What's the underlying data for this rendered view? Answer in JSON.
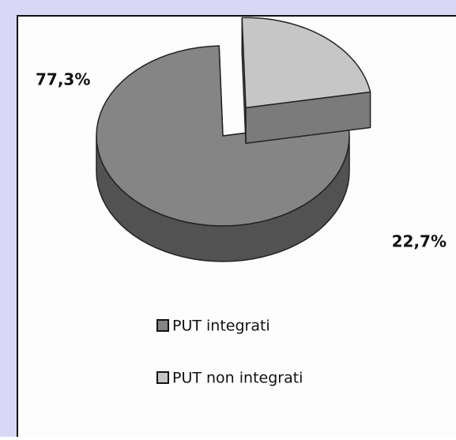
{
  "chart_data": {
    "type": "pie",
    "categories": [
      "PUT integrati",
      "PUT non integrati"
    ],
    "values": [
      77.3,
      22.7
    ],
    "value_labels": [
      "77,3%",
      "22,7%"
    ],
    "colors": [
      "#858585",
      "#c6c6c6"
    ]
  }
}
